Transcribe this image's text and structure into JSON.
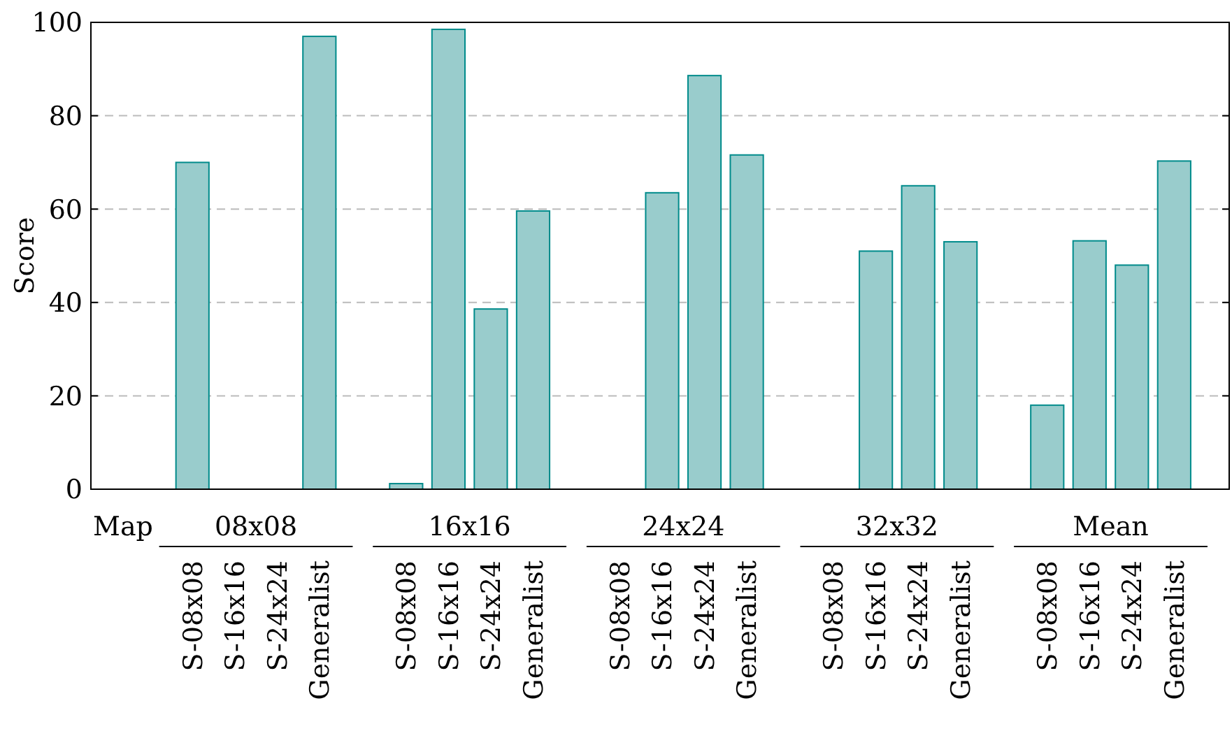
{
  "chart_data": {
    "type": "bar",
    "ylabel": "Score",
    "xlabel": "Map",
    "categories": [
      "S-08x08",
      "S-16x16",
      "S-24x24",
      "Generalist",
      "S-08x08",
      "S-16x16",
      "S-24x24",
      "Generalist",
      "S-08x08",
      "S-16x16",
      "S-24x24",
      "Generalist",
      "S-08x08",
      "S-16x16",
      "S-24x24",
      "Generalist",
      "S-08x08",
      "S-16x16",
      "S-24x24",
      "Generalist"
    ],
    "values": [
      70,
      null,
      null,
      97,
      1.2,
      98.5,
      38.6,
      59.6,
      null,
      63.5,
      88.6,
      71.6,
      null,
      51,
      65,
      53,
      18,
      53.2,
      48,
      70.3
    ],
    "color": "#99cccc",
    "annotations": [
      "08x08",
      "16x16",
      "24x24",
      "32x32",
      "Mean"
    ],
    "ylim": [
      0,
      100
    ],
    "yticks": [
      0,
      20,
      40,
      60,
      80,
      100
    ],
    "grid": "y"
  }
}
